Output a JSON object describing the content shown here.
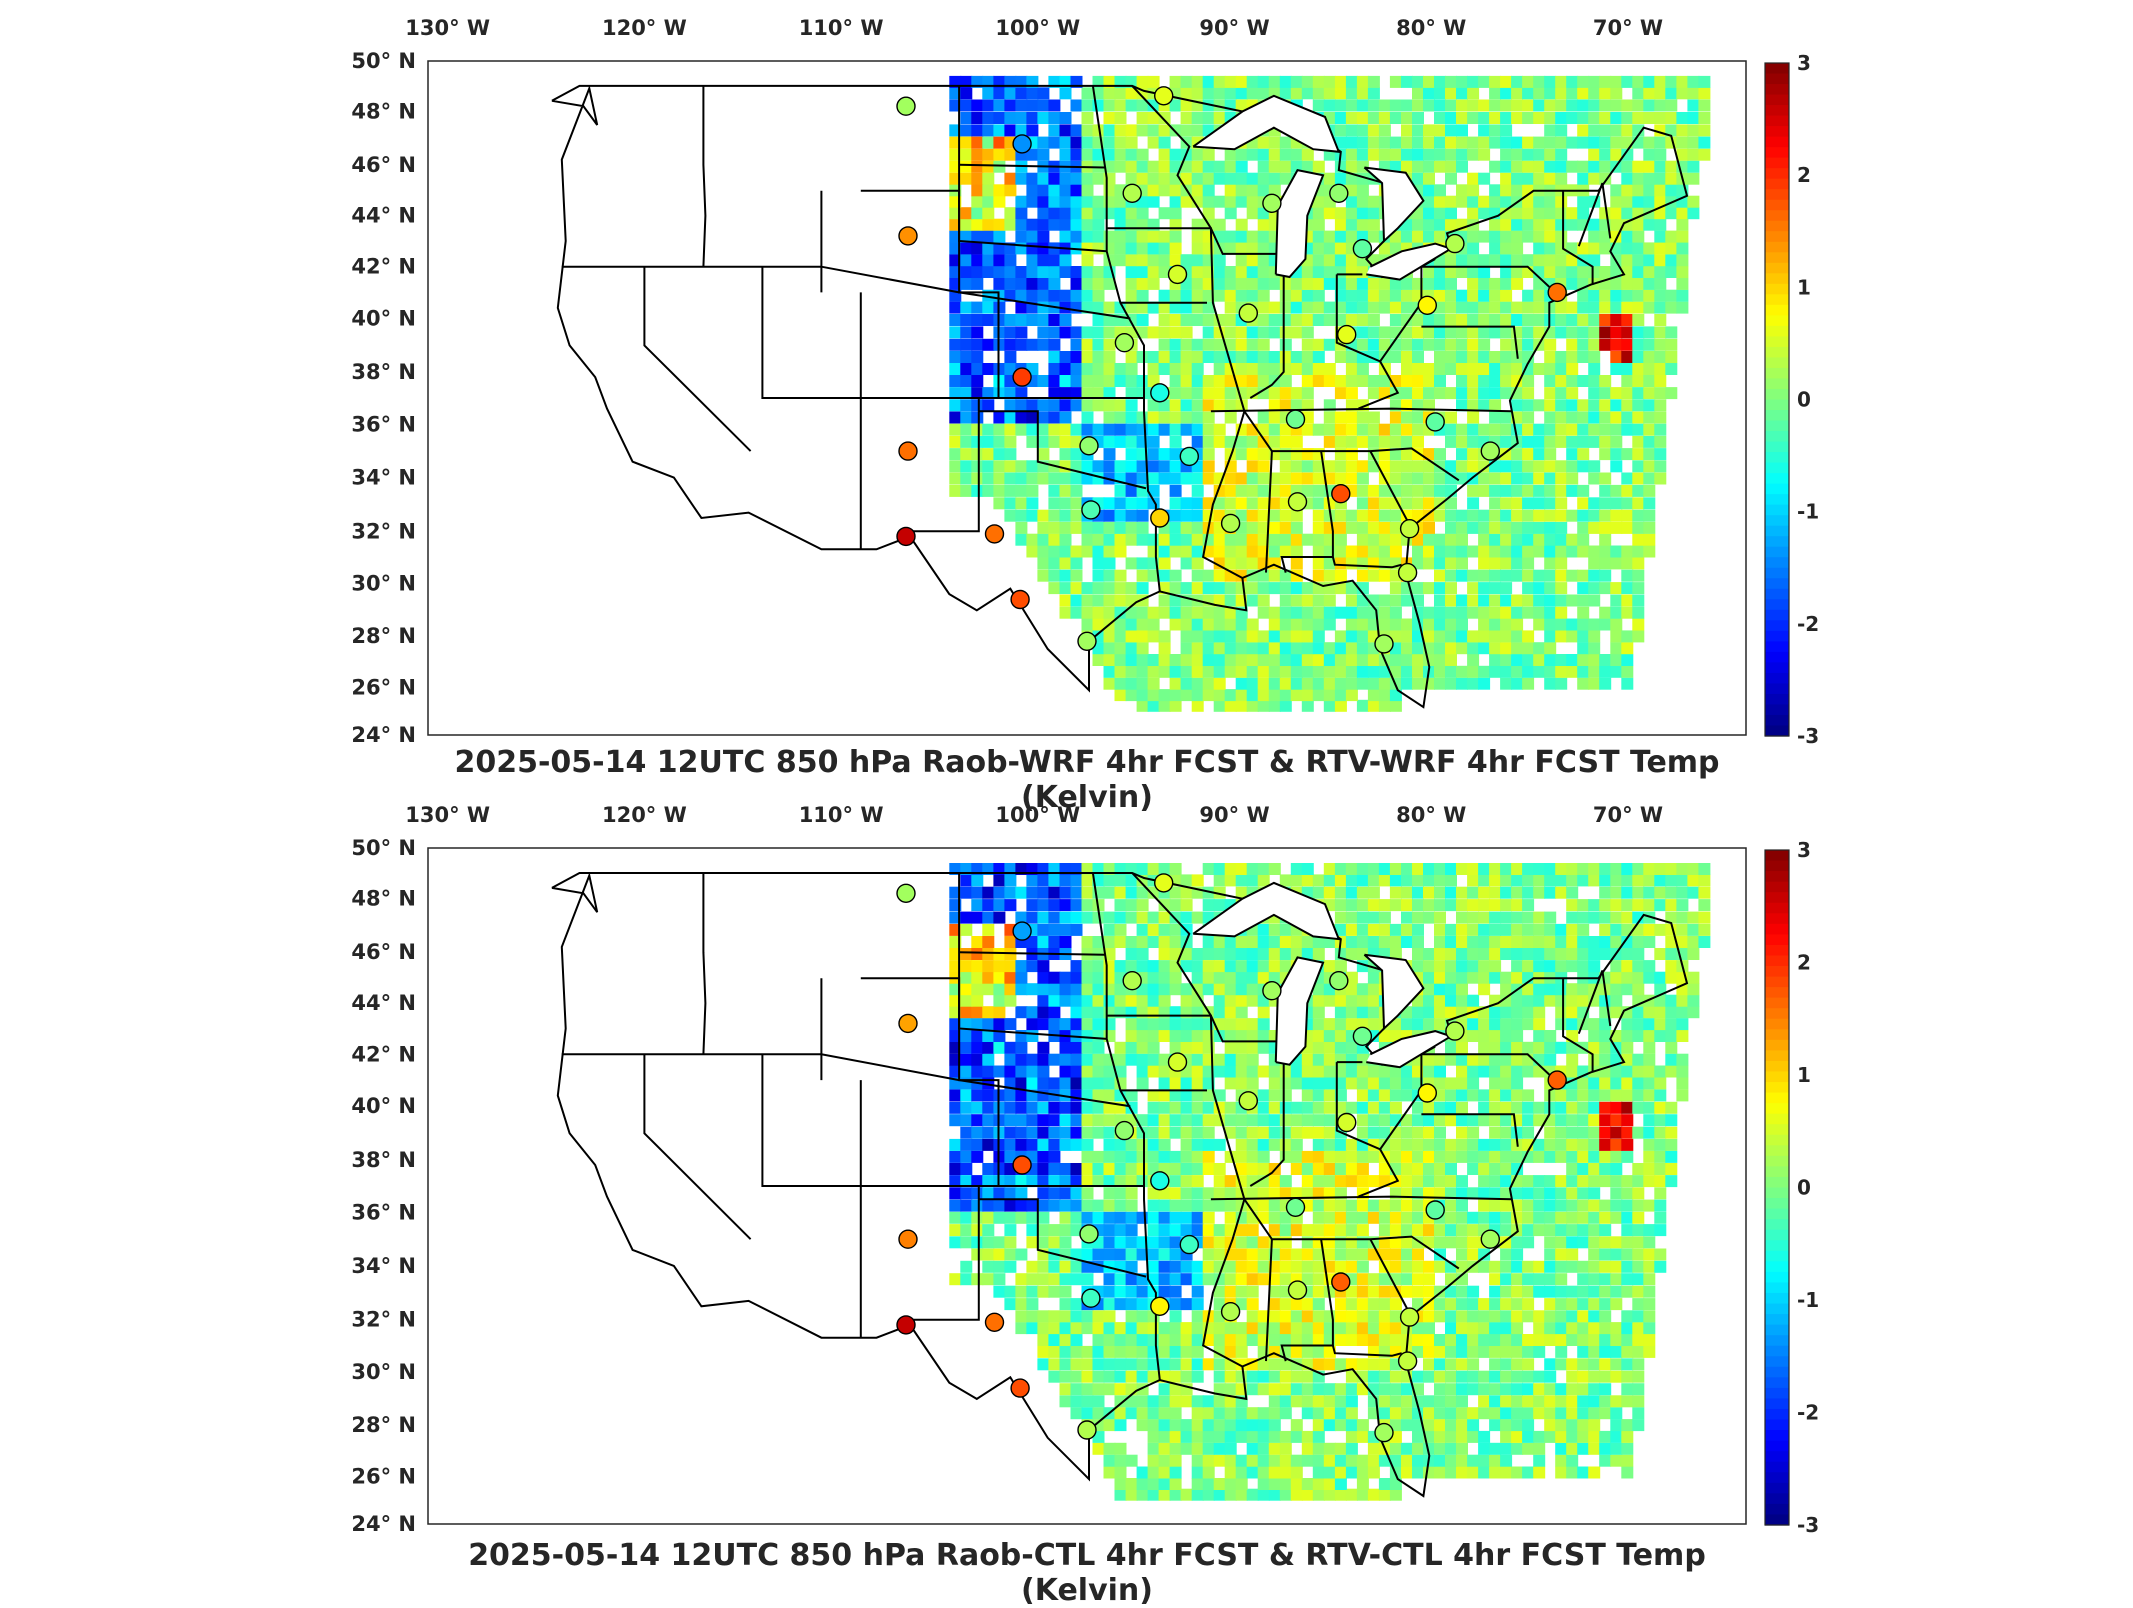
{
  "panels": [
    {
      "id": "wrf",
      "title": "2025-05-14 12UTC 850 hPa Raob-WRF 4hr FCST & RTV-WRF 4hr FCST Temp (Kelvin)",
      "lon_ticks": [
        "130",
        "120",
        "110",
        "100",
        "90",
        "80",
        "70"
      ],
      "lon_hemisphere": "W",
      "lat_ticks": [
        "50",
        "48",
        "46",
        "44",
        "42",
        "40",
        "38",
        "36",
        "34",
        "32",
        "30",
        "28",
        "26",
        "24"
      ],
      "lat_hemisphere": "N",
      "colorbar_ticks": [
        "3",
        "2",
        "1",
        "0",
        "-1",
        "-2",
        "-3"
      ]
    },
    {
      "id": "ctl",
      "title": "2025-05-14 12UTC 850 hPa Raob-CTL 4hr FCST & RTV-CTL 4hr FCST Temp (Kelvin)",
      "lon_ticks": [
        "130",
        "120",
        "110",
        "100",
        "90",
        "80",
        "70"
      ],
      "lon_hemisphere": "W",
      "lat_ticks": [
        "50",
        "48",
        "46",
        "44",
        "42",
        "40",
        "38",
        "36",
        "34",
        "32",
        "30",
        "28",
        "26",
        "24"
      ],
      "lat_hemisphere": "N",
      "colorbar_ticks": [
        "3",
        "2",
        "1",
        "0",
        "-1",
        "-2",
        "-3"
      ]
    }
  ],
  "map": {
    "region": "Contiguous United States",
    "lon_range": [
      -131,
      -64
    ],
    "lat_range": [
      24,
      50
    ],
    "colormap": "jet",
    "color_range": [
      -3,
      3
    ],
    "colors": {
      "low": "#00008f",
      "mid": "#7fff7f",
      "high": "#800000",
      "border": "#000000"
    }
  },
  "raob_stations": [
    {
      "lon": -106.7,
      "lat": 48.2,
      "wrf": 0.2,
      "ctl": 0.2
    },
    {
      "lon": -100.8,
      "lat": 46.8,
      "wrf": -1.4,
      "ctl": -1.3
    },
    {
      "lon": -93.6,
      "lat": 48.6,
      "wrf": 0.6,
      "ctl": 0.6
    },
    {
      "lon": -106.6,
      "lat": 43.2,
      "wrf": 1.4,
      "ctl": 1.3
    },
    {
      "lon": -95.2,
      "lat": 44.9,
      "wrf": 0.3,
      "ctl": 0.3
    },
    {
      "lon": -88.1,
      "lat": 44.5,
      "wrf": 0.2,
      "ctl": 0.2
    },
    {
      "lon": -84.7,
      "lat": 44.9,
      "wrf": 0.1,
      "ctl": 0.1
    },
    {
      "lon": -83.5,
      "lat": 42.7,
      "wrf": -0.2,
      "ctl": -0.1
    },
    {
      "lon": -78.8,
      "lat": 42.9,
      "wrf": 0.3,
      "ctl": 0.3
    },
    {
      "lon": -92.9,
      "lat": 41.7,
      "wrf": 0.5,
      "ctl": 0.5
    },
    {
      "lon": -89.3,
      "lat": 40.2,
      "wrf": 0.4,
      "ctl": 0.4
    },
    {
      "lon": -80.2,
      "lat": 40.5,
      "wrf": 0.8,
      "ctl": 0.8
    },
    {
      "lon": -73.6,
      "lat": 41.0,
      "wrf": 1.6,
      "ctl": 1.7
    },
    {
      "lon": -95.6,
      "lat": 39.1,
      "wrf": 0.2,
      "ctl": 0.1
    },
    {
      "lon": -84.3,
      "lat": 39.4,
      "wrf": 0.6,
      "ctl": 0.5
    },
    {
      "lon": -100.8,
      "lat": 37.8,
      "wrf": 1.9,
      "ctl": 1.8
    },
    {
      "lon": -93.8,
      "lat": 37.2,
      "wrf": -0.6,
      "ctl": -0.6
    },
    {
      "lon": -86.9,
      "lat": 36.2,
      "wrf": -0.1,
      "ctl": -0.1
    },
    {
      "lon": -79.8,
      "lat": 36.1,
      "wrf": -0.2,
      "ctl": -0.2
    },
    {
      "lon": -106.6,
      "lat": 35.0,
      "wrf": 1.6,
      "ctl": 1.5
    },
    {
      "lon": -97.4,
      "lat": 35.2,
      "wrf": 0.1,
      "ctl": 0.1
    },
    {
      "lon": -92.3,
      "lat": 34.8,
      "wrf": -0.4,
      "ctl": -0.4
    },
    {
      "lon": -77.0,
      "lat": 35.0,
      "wrf": 0.2,
      "ctl": 0.2
    },
    {
      "lon": -86.8,
      "lat": 33.1,
      "wrf": 0.4,
      "ctl": 0.4
    },
    {
      "lon": -84.6,
      "lat": 33.4,
      "wrf": 1.8,
      "ctl": 1.7
    },
    {
      "lon": -97.3,
      "lat": 32.8,
      "wrf": -0.3,
      "ctl": -0.4
    },
    {
      "lon": -90.2,
      "lat": 32.3,
      "wrf": 0.3,
      "ctl": 0.3
    },
    {
      "lon": -81.1,
      "lat": 32.1,
      "wrf": 0.4,
      "ctl": 0.4
    },
    {
      "lon": -93.8,
      "lat": 32.5,
      "wrf": 1.0,
      "ctl": 0.8
    },
    {
      "lon": -106.7,
      "lat": 31.8,
      "wrf": 2.6,
      "ctl": 2.6
    },
    {
      "lon": -102.2,
      "lat": 31.9,
      "wrf": 1.6,
      "ctl": 1.6
    },
    {
      "lon": -100.9,
      "lat": 29.4,
      "wrf": 1.8,
      "ctl": 1.8
    },
    {
      "lon": -97.5,
      "lat": 27.8,
      "wrf": 0.2,
      "ctl": 0.3
    },
    {
      "lon": -82.4,
      "lat": 27.7,
      "wrf": 0.2,
      "ctl": 0.2
    },
    {
      "lon": -81.2,
      "lat": 30.4,
      "wrf": 0.4,
      "ctl": 0.4
    }
  ]
}
